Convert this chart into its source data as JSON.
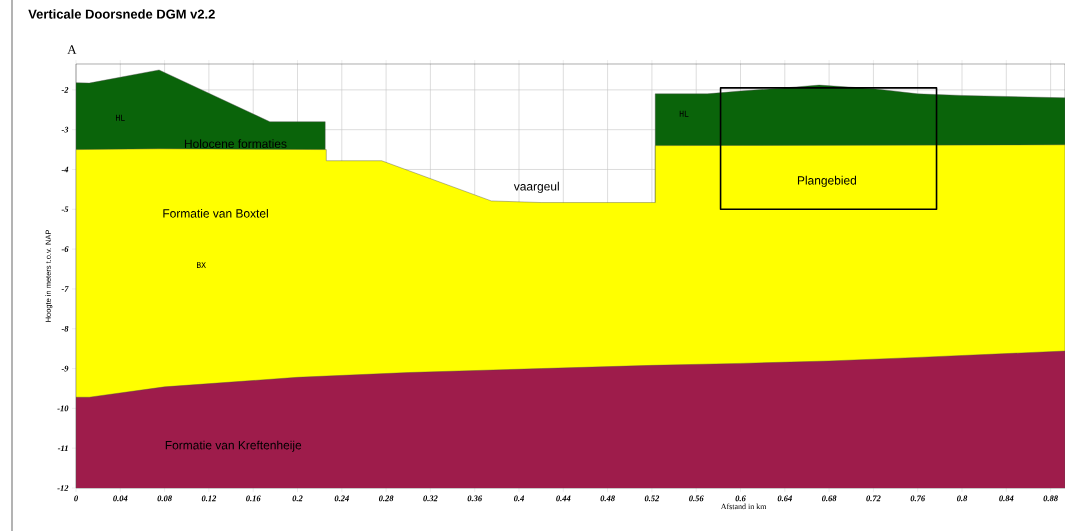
{
  "chart_data": {
    "type": "area",
    "title": "Verticale Doorsnede DGM v2.2",
    "xlabel": "Afstand in km",
    "ylabel": "Hoogte in meters t.o.v. NAP",
    "xlim": [
      0,
      0.893
    ],
    "ylim": [
      -12,
      -1.35
    ],
    "xticks": [
      0,
      0.04,
      0.08,
      0.12,
      0.16,
      0.2,
      0.24,
      0.28,
      0.32,
      0.36,
      0.4,
      0.44,
      0.48,
      0.52,
      0.56,
      0.6,
      0.64,
      0.68,
      0.72,
      0.76,
      0.8,
      0.84,
      0.88
    ],
    "yticks": [
      -2,
      -3,
      -4,
      -5,
      -6,
      -7,
      -8,
      -9,
      -10,
      -11,
      -12
    ],
    "grid": true,
    "series": [
      {
        "color": "#0a640a",
        "x": [
          0,
          0.012,
          0.075,
          0.175,
          0.225
        ],
        "values": [
          -1.82,
          -1.83,
          -1.5,
          -2.8,
          -2.8
        ]
      },
      {
        "color": "#0a640a",
        "x": [
          0.523,
          0.57,
          0.6,
          0.64,
          0.671,
          0.72,
          0.76,
          0.8,
          0.893
        ],
        "values": [
          -2.1,
          -2.1,
          -2.03,
          -1.95,
          -1.88,
          -1.97,
          -2.1,
          -2.14,
          -2.2
        ]
      },
      {
        "color": "#ffff00",
        "x": [
          0,
          0.075,
          0.226,
          0.226,
          0.276,
          0.375,
          0.42,
          0.523,
          0.523,
          0.893
        ],
        "values": [
          -3.5,
          -3.48,
          -3.5,
          -3.78,
          -3.78,
          -4.79,
          -4.83,
          -4.83,
          -3.4,
          -3.38
        ]
      },
      {
        "color": "#9e1c4b",
        "x": [
          0,
          0.012,
          0.08,
          0.2,
          0.3,
          0.42,
          0.52,
          0.6,
          0.68,
          0.76,
          0.893
        ],
        "values": [
          -9.72,
          -9.72,
          -9.46,
          -9.22,
          -9.1,
          -9.0,
          -8.92,
          -8.87,
          -8.81,
          -8.72,
          -8.56
        ]
      }
    ],
    "annotations": [
      "A",
      "HL",
      "Holocene formaties",
      "Formatie van Boxtel",
      "BX",
      "Formatie van Kreftenheije",
      "vaargeul",
      "HL",
      "Plangebied"
    ]
  }
}
